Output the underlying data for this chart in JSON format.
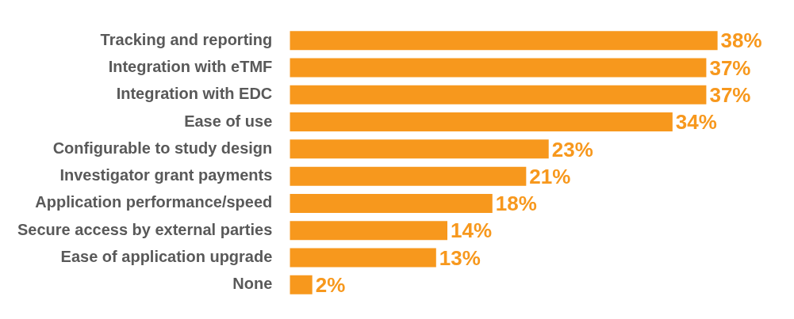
{
  "chart_data": {
    "type": "bar",
    "orientation": "horizontal",
    "categories": [
      "Tracking and reporting",
      "Integration with eTMF",
      "Integration with EDC",
      "Ease of use",
      "Configurable to study design",
      "Investigator grant payments",
      "Application performance/speed",
      "Secure access by external parties",
      "Ease of application upgrade",
      "None"
    ],
    "values": [
      38,
      37,
      37,
      34,
      23,
      21,
      18,
      14,
      13,
      2
    ],
    "value_labels": [
      "38%",
      "37%",
      "37%",
      "34%",
      "23%",
      "21%",
      "18%",
      "14%",
      "13%",
      "2%"
    ],
    "color": "#f7981d",
    "tick_labels": "y"
  }
}
